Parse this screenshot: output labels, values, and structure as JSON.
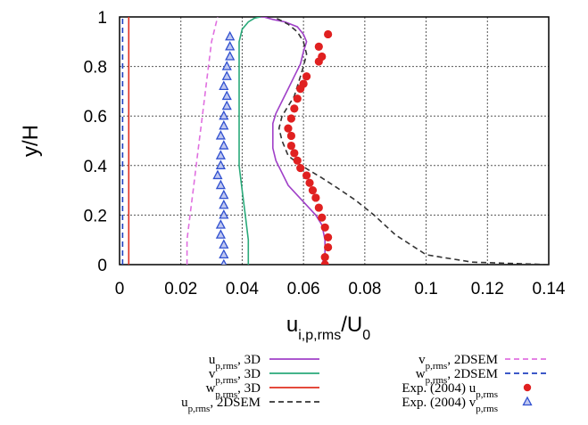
{
  "chart_data": {
    "type": "line",
    "xlabel": "u_{i,p,rms}/U_0",
    "ylabel": "y/H",
    "xlim": [
      0,
      0.14
    ],
    "ylim": [
      0,
      1
    ],
    "xticks": [
      "0",
      "0.02",
      "0.04",
      "0.06",
      "0.08",
      "0.1",
      "0.12",
      "0.14"
    ],
    "yticks": [
      "0",
      "0.2",
      "0.4",
      "0.6",
      "0.8",
      "1"
    ],
    "grid": true,
    "legend_position": "bottom",
    "series": [
      {
        "name": "u_{p,rms}, 3D",
        "color": "#a040c8",
        "style": "solid",
        "x": [
          0.066,
          0.067,
          0.067,
          0.066,
          0.064,
          0.061,
          0.058,
          0.055,
          0.053,
          0.051,
          0.05,
          0.05,
          0.05,
          0.051,
          0.053,
          0.055,
          0.057,
          0.059,
          0.06,
          0.061,
          0.06,
          0.058,
          0.054,
          0.05,
          0.047,
          0.046
        ],
        "y": [
          0,
          0.04,
          0.1,
          0.16,
          0.2,
          0.24,
          0.28,
          0.32,
          0.37,
          0.42,
          0.47,
          0.52,
          0.57,
          0.61,
          0.66,
          0.71,
          0.76,
          0.81,
          0.86,
          0.9,
          0.93,
          0.96,
          0.98,
          0.99,
          1.0,
          1.0
        ]
      },
      {
        "name": "v_{p,rms}, 3D",
        "color": "#2aaa7a",
        "style": "solid",
        "x": [
          0.042,
          0.042,
          0.041,
          0.04,
          0.039,
          0.039,
          0.039,
          0.039,
          0.039,
          0.039,
          0.04,
          0.042,
          0.044,
          0.046
        ],
        "y": [
          0,
          0.1,
          0.2,
          0.3,
          0.4,
          0.5,
          0.6,
          0.7,
          0.8,
          0.9,
          0.95,
          0.98,
          0.995,
          1.0
        ]
      },
      {
        "name": "w_{p,rms}, 3D",
        "color": "#e03020",
        "style": "solid",
        "x": [
          0.003,
          0.003,
          0.003,
          0.003,
          0.003,
          0.003
        ],
        "y": [
          0,
          0.2,
          0.4,
          0.6,
          0.8,
          1.0
        ]
      },
      {
        "name": "u_{p,rms}, 2DSEM",
        "color": "#333333",
        "style": "dashed",
        "x": [
          0.14,
          0.115,
          0.1,
          0.09,
          0.083,
          0.077,
          0.071,
          0.066,
          0.062,
          0.058,
          0.055,
          0.053,
          0.052,
          0.053,
          0.055,
          0.057,
          0.058,
          0.059,
          0.06,
          0.061,
          0.06,
          0.058,
          0.055,
          0.052,
          0.05
        ],
        "y": [
          0,
          0.01,
          0.04,
          0.12,
          0.2,
          0.26,
          0.31,
          0.35,
          0.38,
          0.41,
          0.44,
          0.5,
          0.55,
          0.6,
          0.64,
          0.68,
          0.72,
          0.76,
          0.8,
          0.85,
          0.9,
          0.94,
          0.97,
          0.99,
          1.0
        ]
      },
      {
        "name": "v_{p,rms}, 2DSEM",
        "color": "#e070e0",
        "style": "dashed",
        "x": [
          0.022,
          0.022,
          0.023,
          0.024,
          0.025,
          0.026,
          0.027,
          0.028,
          0.029,
          0.03,
          0.031,
          0.032
        ],
        "y": [
          0,
          0.1,
          0.2,
          0.3,
          0.4,
          0.5,
          0.6,
          0.7,
          0.8,
          0.9,
          0.95,
          1.0
        ]
      },
      {
        "name": "w_{p,rms}, 2DSEM",
        "color": "#2040c0",
        "style": "dashed",
        "x": [
          0.001,
          0.001,
          0.001,
          0.001,
          0.001,
          0.001
        ],
        "y": [
          0,
          0.2,
          0.4,
          0.6,
          0.8,
          1.0
        ]
      },
      {
        "name": "Exp. (2004) u_{p,rms}",
        "color": "#e02020",
        "style": "marker-circle",
        "x": [
          0.067,
          0.067,
          0.068,
          0.068,
          0.067,
          0.066,
          0.065,
          0.064,
          0.063,
          0.062,
          0.061,
          0.059,
          0.058,
          0.057,
          0.056,
          0.056,
          0.055,
          0.056,
          0.057,
          0.058,
          0.059,
          0.06,
          0.061,
          0.065,
          0.066,
          0.065,
          0.068
        ],
        "y": [
          0,
          0.03,
          0.07,
          0.11,
          0.15,
          0.19,
          0.23,
          0.27,
          0.3,
          0.33,
          0.36,
          0.39,
          0.42,
          0.45,
          0.48,
          0.52,
          0.55,
          0.59,
          0.63,
          0.67,
          0.71,
          0.73,
          0.76,
          0.82,
          0.84,
          0.88,
          0.93
        ]
      },
      {
        "name": "Exp. (2004) v_{p,rms}",
        "color": "#3050d0",
        "style": "marker-triangle",
        "x": [
          0.034,
          0.034,
          0.034,
          0.033,
          0.033,
          0.034,
          0.034,
          0.034,
          0.033,
          0.032,
          0.033,
          0.033,
          0.034,
          0.033,
          0.034,
          0.034,
          0.035,
          0.035,
          0.034,
          0.035,
          0.035,
          0.036,
          0.036,
          0.036
        ],
        "y": [
          0,
          0.04,
          0.08,
          0.12,
          0.16,
          0.2,
          0.24,
          0.28,
          0.32,
          0.36,
          0.4,
          0.44,
          0.48,
          0.52,
          0.56,
          0.6,
          0.64,
          0.68,
          0.72,
          0.76,
          0.8,
          0.84,
          0.88,
          0.92
        ]
      }
    ]
  }
}
